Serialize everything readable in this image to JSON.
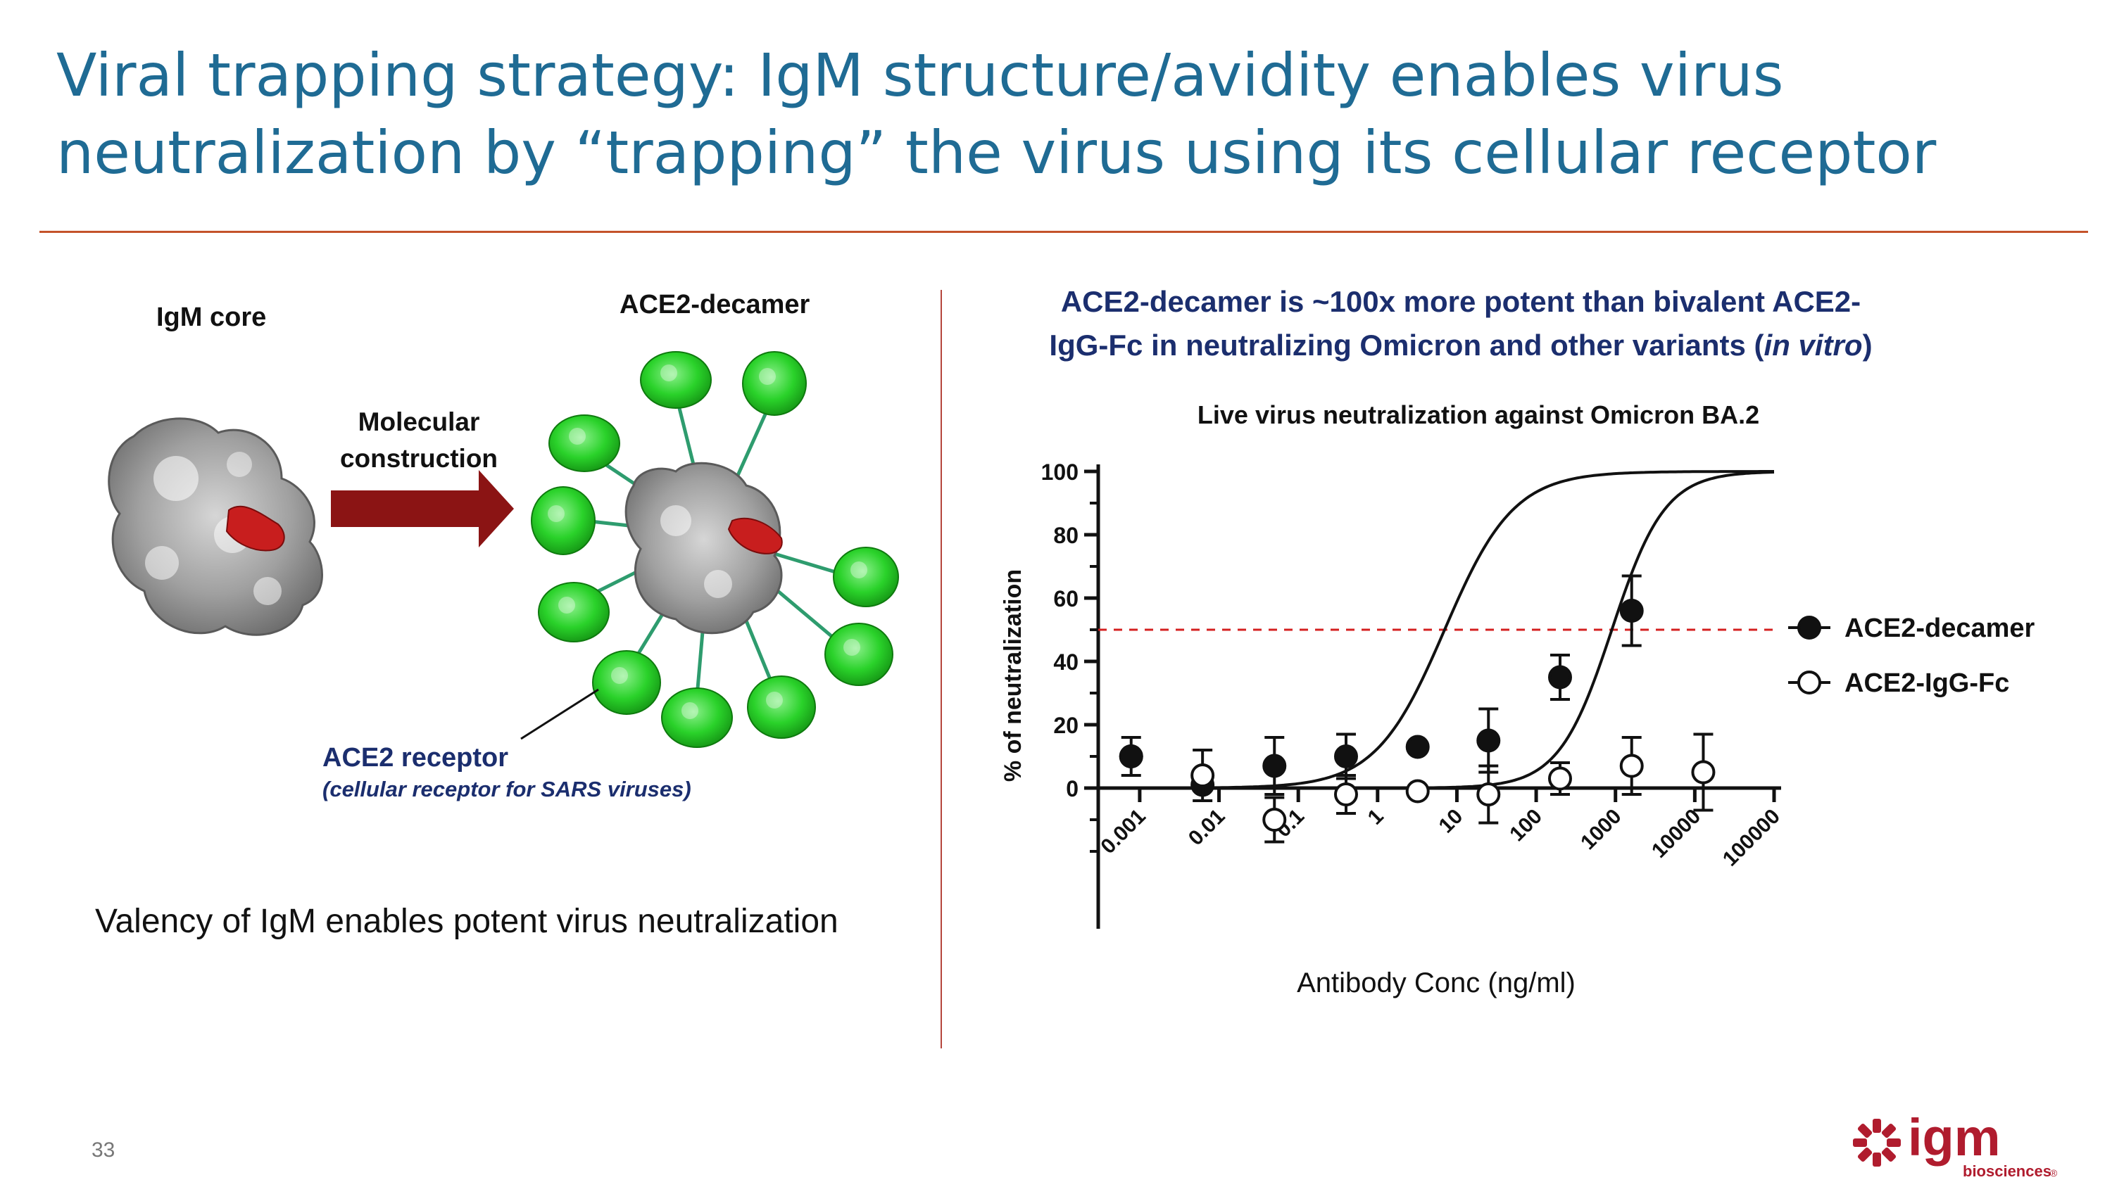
{
  "slide": {
    "title_line1": "Viral trapping strategy: IgM structure/avidity enables virus",
    "title_line2": "neutralization by “trapping” the virus using its cellular receptor",
    "page_number": "33",
    "bottom_text": "Valency of IgM enables potent virus neutralization"
  },
  "left": {
    "core_label": "IgM core",
    "decamer_label": "ACE2-decamer",
    "arrow_label_line1": "Molecular",
    "arrow_label_line2": "construction",
    "receptor_label": "ACE2 receptor",
    "receptor_sublabel": "(cellular receptor for SARS viruses)"
  },
  "right": {
    "heading_line1": "ACE2-decamer is ~100x more potent than bivalent ACE2-",
    "heading_line2_a": "IgG-Fc in neutralizing Omicron and other variants (",
    "heading_line2_italic": "in vitro",
    "heading_line2_b": ")"
  },
  "logo": {
    "wordmark": "igm",
    "subtext": "biosciences",
    "mark": "®"
  },
  "colors": {
    "title": "#1f6b94",
    "accent_rule": "#c4532a",
    "heading": "#1b2e6e",
    "arrow": "#8b1414",
    "reference_line": "#d42020",
    "protein_green": "#22c322",
    "protein_gray": "#9a9a9a",
    "protein_red": "#c81e1e",
    "logo_red": "#b01c2e"
  },
  "chart_data": {
    "type": "scatter",
    "title": "Live virus neutralization against Omicron BA.2",
    "xlabel": "Antibody Conc (ng/ml)",
    "ylabel": "% of neutralization",
    "x_scale": "log",
    "xlim": [
      0.0003,
      100000
    ],
    "ylim": [
      -20,
      100
    ],
    "x_ticks": [
      0.001,
      0.01,
      0.1,
      1,
      10,
      100,
      1000,
      10000,
      100000
    ],
    "x_tick_labels": [
      "0.001",
      "0.01",
      "0.1",
      "1",
      "10",
      "100",
      "1000",
      "10000",
      "100000"
    ],
    "y_ticks": [
      0,
      20,
      40,
      60,
      80,
      100
    ],
    "y_tick_labels": [
      "0",
      "20",
      "40",
      "60",
      "80",
      "100"
    ],
    "reference_line": {
      "y": 50,
      "style": "dashed"
    },
    "legend_position": "right",
    "series": [
      {
        "name": "ACE2-decamer",
        "marker": "filled-circle",
        "fit_ec50": 7,
        "fit_hill": 1.0,
        "points": [
          {
            "x": 0.00078,
            "y": 10,
            "err": 6
          },
          {
            "x": 0.0062,
            "y": 1,
            "err": 0
          },
          {
            "x": 0.05,
            "y": 7,
            "err": 9
          },
          {
            "x": 0.4,
            "y": 10,
            "err": 7
          },
          {
            "x": 3.2,
            "y": 13,
            "err": 0
          },
          {
            "x": 25,
            "y": 15,
            "err": 10
          },
          {
            "x": 200,
            "y": 35,
            "err": 7
          },
          {
            "x": 1600,
            "y": 56,
            "err": 11
          },
          {
            "x": 0.00078,
            "y": 10,
            "err": 0
          }
        ]
      },
      {
        "name": "ACE2-IgG-Fc",
        "marker": "open-circle",
        "fit_ec50": 900,
        "fit_hill": 1.3,
        "points": [
          {
            "x": 0.0062,
            "y": 4,
            "err": 8
          },
          {
            "x": 0.05,
            "y": -10,
            "err": 7
          },
          {
            "x": 0.4,
            "y": -2,
            "err": 6
          },
          {
            "x": 3.2,
            "y": -1,
            "err": 0
          },
          {
            "x": 25,
            "y": -2,
            "err": 9
          },
          {
            "x": 200,
            "y": 3,
            "err": 5
          },
          {
            "x": 1600,
            "y": 7,
            "err": 9
          },
          {
            "x": 12800,
            "y": 5,
            "err": 12
          }
        ]
      }
    ]
  }
}
